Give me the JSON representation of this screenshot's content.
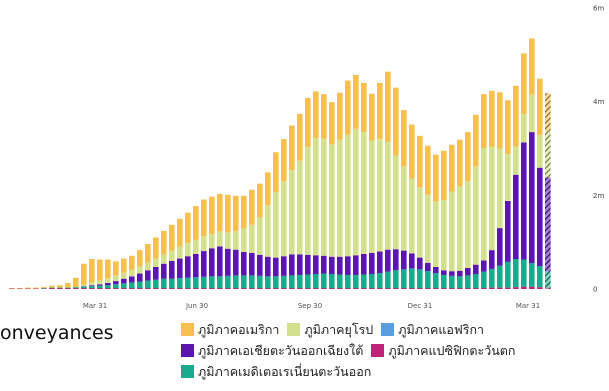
{
  "caption": "onveyances",
  "chart_data": {
    "type": "bar",
    "stacked": true,
    "x_ticks": [
      "Mar 31",
      "Jun 30",
      "Sep 30",
      "Dec 31",
      "Mar 31"
    ],
    "y_ticks": [
      "0",
      "2m",
      "4m",
      "6m"
    ],
    "ylim": [
      0,
      6
    ],
    "grid": false,
    "legend_position": "bottom",
    "series": [
      {
        "name": "ภูมิภาคเมดิเตอเรเนี่ยนตะวันออก",
        "color": "#1aab8c",
        "values": [
          0,
          0,
          0,
          0,
          0.01,
          0.01,
          0.01,
          0.01,
          0.02,
          0.03,
          0.04,
          0.05,
          0.06,
          0.08,
          0.1,
          0.12,
          0.14,
          0.16,
          0.18,
          0.2,
          0.2,
          0.21,
          0.22,
          0.23,
          0.24,
          0.25,
          0.25,
          0.26,
          0.27,
          0.27,
          0.27,
          0.26,
          0.25,
          0.25,
          0.26,
          0.27,
          0.28,
          0.29,
          0.3,
          0.31,
          0.3,
          0.29,
          0.28,
          0.28,
          0.29,
          0.3,
          0.32,
          0.35,
          0.38,
          0.4,
          0.42,
          0.4,
          0.36,
          0.32,
          0.28,
          0.26,
          0.25,
          0.27,
          0.3,
          0.35,
          0.4,
          0.47,
          0.55,
          0.6,
          0.58,
          0.5,
          0.45
        ]
      },
      {
        "name": "ภูมิภาคเอเชียตะวันออกเฉียงใต้",
        "color": "#5b16b0",
        "values": [
          0,
          0,
          0,
          0,
          0,
          0,
          0,
          0,
          0,
          0.01,
          0.02,
          0.03,
          0.05,
          0.07,
          0.1,
          0.13,
          0.17,
          0.22,
          0.27,
          0.32,
          0.38,
          0.42,
          0.46,
          0.5,
          0.55,
          0.6,
          0.64,
          0.58,
          0.55,
          0.5,
          0.48,
          0.45,
          0.42,
          0.4,
          0.42,
          0.45,
          0.44,
          0.42,
          0.4,
          0.38,
          0.37,
          0.38,
          0.4,
          0.42,
          0.44,
          0.45,
          0.46,
          0.47,
          0.45,
          0.4,
          0.32,
          0.25,
          0.18,
          0.13,
          0.1,
          0.1,
          0.12,
          0.16,
          0.2,
          0.24,
          0.4,
          0.8,
          1.3,
          1.8,
          2.5,
          2.8,
          2.1
        ]
      },
      {
        "name": "ภูมิภาคยุโรป",
        "color": "#d3e18f",
        "values": [
          0,
          0,
          0,
          0,
          0,
          0,
          0,
          0,
          0,
          0.03,
          0.06,
          0.08,
          0.1,
          0.12,
          0.13,
          0.14,
          0.15,
          0.16,
          0.18,
          0.2,
          0.22,
          0.25,
          0.28,
          0.3,
          0.32,
          0.3,
          0.32,
          0.35,
          0.4,
          0.5,
          0.6,
          0.8,
          1.1,
          1.4,
          1.6,
          1.8,
          2.0,
          2.3,
          2.5,
          2.5,
          2.4,
          2.5,
          2.6,
          2.7,
          2.6,
          2.4,
          2.4,
          2.3,
          2.0,
          1.8,
          1.6,
          1.5,
          1.45,
          1.4,
          1.5,
          1.7,
          1.8,
          1.85,
          2.1,
          2.4,
          2.2,
          1.7,
          1.0,
          0.6,
          0.6,
          0.8,
          0.7
        ]
      },
      {
        "name": "ภูมิภาคอเมริกา",
        "color": "#f6c04f",
        "values": [
          0.01,
          0.01,
          0.02,
          0.02,
          0.02,
          0.04,
          0.05,
          0.1,
          0.2,
          0.45,
          0.5,
          0.45,
          0.4,
          0.3,
          0.3,
          0.3,
          0.35,
          0.4,
          0.45,
          0.5,
          0.55,
          0.6,
          0.65,
          0.72,
          0.78,
          0.8,
          0.8,
          0.8,
          0.75,
          0.7,
          0.75,
          0.72,
          0.7,
          0.85,
          0.9,
          0.95,
          1.0,
          1.05,
          1.0,
          0.95,
          0.9,
          1.0,
          1.15,
          1.15,
          1.05,
          1.0,
          1.2,
          1.5,
          1.45,
          1.2,
          1.15,
          1.1,
          1.05,
          1.0,
          1.05,
          1.0,
          1.0,
          1.05,
          1.1,
          1.15,
          1.2,
          1.2,
          1.15,
          1.3,
          1.3,
          1.2,
          1.2
        ]
      },
      {
        "name": "ภูมิภาคแอฟริกา",
        "color": "#5b9ee0",
        "values": [
          0,
          0,
          0,
          0,
          0,
          0,
          0,
          0,
          0,
          0,
          0,
          0,
          0,
          0,
          0,
          0,
          0,
          0,
          0,
          0,
          0,
          0,
          0,
          0,
          0,
          0,
          0,
          0,
          0,
          0,
          0,
          0,
          0,
          0,
          0,
          0,
          0,
          0,
          0,
          0,
          0,
          0,
          0,
          0,
          0,
          0,
          0,
          0,
          0,
          0,
          0,
          0,
          0,
          0,
          0,
          0,
          0,
          0,
          0,
          0,
          0,
          0,
          0,
          0,
          0,
          0,
          0
        ]
      },
      {
        "name": "ภูมิภาคแปซิฟิกตะวันตก",
        "color": "#c0247a",
        "values": [
          0.01,
          0.01,
          0.01,
          0.01,
          0.01,
          0.02,
          0.02,
          0.02,
          0.02,
          0.02,
          0.02,
          0.02,
          0.02,
          0.02,
          0.02,
          0.02,
          0.02,
          0.02,
          0.02,
          0.02,
          0.02,
          0.02,
          0.02,
          0.02,
          0.02,
          0.02,
          0.02,
          0.02,
          0.02,
          0.02,
          0.02,
          0.02,
          0.02,
          0.02,
          0.02,
          0.02,
          0.02,
          0.02,
          0.02,
          0.02,
          0.02,
          0.02,
          0.02,
          0.02,
          0.02,
          0.02,
          0.02,
          0.02,
          0.02,
          0.02,
          0.02,
          0.02,
          0.02,
          0.02,
          0.02,
          0.02,
          0.02,
          0.02,
          0.02,
          0.02,
          0.03,
          0.03,
          0.03,
          0.04,
          0.05,
          0.05,
          0.04
        ]
      }
    ],
    "partial_last_bar": {
      "values": {
        "ภูมิภาคเมดิเตอเรเนี่ยนตะวันออก": 0.35,
        "ภูมิภาคเอเชียตะวันออกเฉียงใต้": 2.0,
        "ภูมิภาคยุโรป": 1.0,
        "ภูมิภาคอเมริกา": 0.8,
        "ภูมิภาคแปซิฟิกตะวันตก": 0.03
      }
    }
  },
  "legend": {
    "rows": [
      [
        {
          "label": "ภูมิภาคอเมริกา",
          "color": "#f6c04f"
        },
        {
          "label": "ภูมิภาคยุโรป",
          "color": "#d3e18f"
        },
        {
          "label": "ภูมิภาคแอฟริกา",
          "color": "#5b9ee0"
        }
      ],
      [
        {
          "label": "ภูมิภาคเอเชียตะวันออกเฉียงใต้",
          "color": "#5b16b0"
        },
        {
          "label": "ภูมิภาคแปซิฟิกตะวันตก",
          "color": "#c0247a"
        }
      ],
      [
        {
          "label": "ภูมิภาคเมดิเตอเรเนี่ยนตะวันออก",
          "color": "#1aab8c"
        }
      ]
    ]
  }
}
